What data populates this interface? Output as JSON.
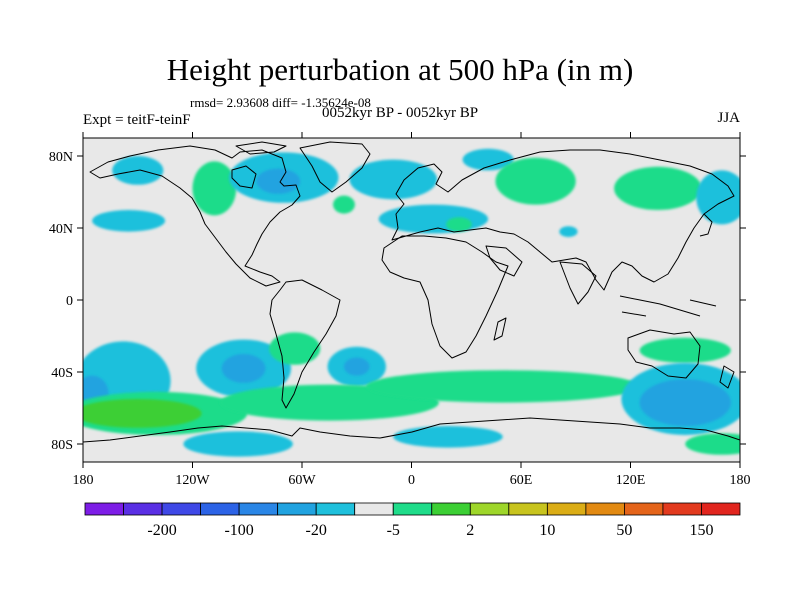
{
  "chart_data": {
    "type": "heatmap",
    "title": "Height perturbation at 500 hPa (in m)",
    "stats_line": "rmsd= 2.93608 diff= -1.35624e-08",
    "left_label": "Expt = teitF-teinF",
    "center_label": "0052kyr BP - 0052kyr BP",
    "right_label": "JJA",
    "x_axis": {
      "range": [
        -180,
        180
      ],
      "tick_values": [
        -180,
        -120,
        -60,
        0,
        60,
        120,
        180
      ],
      "tick_labels": [
        "180",
        "120W",
        "60W",
        "0",
        "60E",
        "120E",
        "180"
      ]
    },
    "y_axis": {
      "range": [
        -90,
        90
      ],
      "tick_values": [
        80,
        40,
        0,
        -40,
        -80
      ],
      "tick_labels": [
        "80N",
        "40N",
        "0",
        "40S",
        "80S"
      ]
    },
    "colorbar": {
      "colors": [
        "#7d1de6",
        "#5a2fe4",
        "#3f48e6",
        "#2c63e6",
        "#2a86e6",
        "#21a3e0",
        "#1fc0dc",
        "#e8e8e8",
        "#1fdc8a",
        "#3ccf34",
        "#9ed62a",
        "#c8c41e",
        "#dbad16",
        "#e28a12",
        "#e4641a",
        "#e23a1e",
        "#e1251e"
      ],
      "labels": [
        "-200",
        "-100",
        "-20",
        "-5",
        "2",
        "10",
        "50",
        "150"
      ],
      "label_after_box": [
        1,
        3,
        5,
        7,
        9,
        11,
        13,
        15
      ]
    },
    "regions": [
      {
        "level": 6,
        "lon": -150,
        "lat": 72,
        "rlon": 14,
        "rlat": 8
      },
      {
        "level": 6,
        "lon": -155,
        "lat": 44,
        "rlon": 20,
        "rlat": 6
      },
      {
        "level": 8,
        "lon": -108,
        "lat": 62,
        "rlon": 12,
        "rlat": 15
      },
      {
        "level": 6,
        "lon": -70,
        "lat": 68,
        "rlon": 30,
        "rlat": 14
      },
      {
        "level": 5,
        "lon": -73,
        "lat": 66,
        "rlon": 12,
        "rlat": 7
      },
      {
        "level": 8,
        "lon": -37,
        "lat": 53,
        "rlon": 6,
        "rlat": 5
      },
      {
        "level": 6,
        "lon": -10,
        "lat": 67,
        "rlon": 24,
        "rlat": 11
      },
      {
        "level": 6,
        "lon": 12,
        "lat": 45,
        "rlon": 30,
        "rlat": 8
      },
      {
        "level": 6,
        "lon": 42,
        "lat": 78,
        "rlon": 14,
        "rlat": 6
      },
      {
        "level": 8,
        "lon": 68,
        "lat": 66,
        "rlon": 22,
        "rlat": 13
      },
      {
        "level": 8,
        "lon": 26,
        "lat": 42,
        "rlon": 7,
        "rlat": 4
      },
      {
        "level": 6,
        "lon": 86,
        "lat": 38,
        "rlon": 5,
        "rlat": 3
      },
      {
        "level": 8,
        "lon": 135,
        "lat": 62,
        "rlon": 24,
        "rlat": 12
      },
      {
        "level": 6,
        "lon": 170,
        "lat": 57,
        "rlon": 14,
        "rlat": 15
      },
      {
        "level": 6,
        "lon": -158,
        "lat": -45,
        "rlon": 26,
        "rlat": 22
      },
      {
        "level": 5,
        "lon": -175,
        "lat": -52,
        "rlon": 9,
        "rlat": 10
      },
      {
        "level": 6,
        "lon": -92,
        "lat": -38,
        "rlon": 26,
        "rlat": 16
      },
      {
        "level": 5,
        "lon": -92,
        "lat": -38,
        "rlon": 12,
        "rlat": 8
      },
      {
        "level": 8,
        "lon": -64,
        "lat": -27,
        "rlon": 14,
        "rlat": 9
      },
      {
        "level": 6,
        "lon": -30,
        "lat": -37,
        "rlon": 16,
        "rlat": 11
      },
      {
        "level": 5,
        "lon": -30,
        "lat": -37,
        "rlon": 7,
        "rlat": 5
      },
      {
        "level": 8,
        "lon": -140,
        "lat": -63,
        "rlon": 50,
        "rlat": 12
      },
      {
        "level": 8,
        "lon": -45,
        "lat": -57,
        "rlon": 60,
        "rlat": 10
      },
      {
        "level": 8,
        "lon": 50,
        "lat": -48,
        "rlon": 75,
        "rlat": 9
      },
      {
        "level": 8,
        "lon": 150,
        "lat": -28,
        "rlon": 25,
        "rlat": 7
      },
      {
        "level": 9,
        "lon": -150,
        "lat": -63,
        "rlon": 35,
        "rlat": 8
      },
      {
        "level": 6,
        "lon": -95,
        "lat": -80,
        "rlon": 30,
        "rlat": 7
      },
      {
        "level": 6,
        "lon": 20,
        "lat": -76,
        "rlon": 30,
        "rlat": 6
      },
      {
        "level": 6,
        "lon": 150,
        "lat": -55,
        "rlon": 35,
        "rlat": 20
      },
      {
        "level": 5,
        "lon": 150,
        "lat": -57,
        "rlon": 25,
        "rlat": 13
      },
      {
        "level": 8,
        "lon": 170,
        "lat": -80,
        "rlon": 20,
        "rlat": 6
      }
    ]
  }
}
